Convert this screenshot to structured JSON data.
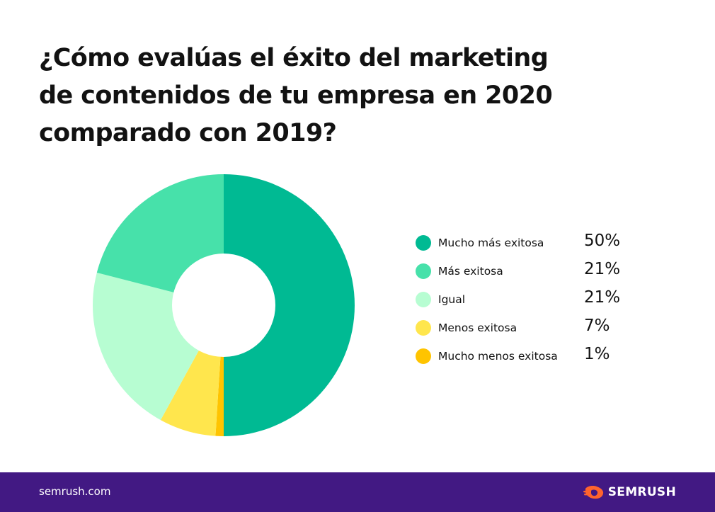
{
  "title_lines": [
    "¿Cómo evalúas el éxito del marketing",
    "de contenidos de tu empresa en 2020",
    "comparado con 2019?"
  ],
  "chart_data": {
    "type": "pie",
    "title": "¿Cómo evalúas el éxito del marketing de contenidos de tu empresa en 2020 comparado con 2019?",
    "categories": [
      "Mucho más exitosa",
      "Más exitosa",
      "Igual",
      "Menos exitosa",
      "Mucho menos exitosa"
    ],
    "values": [
      50,
      21,
      21,
      7,
      1
    ],
    "value_labels": [
      "50%",
      "21%",
      "21%",
      "7%",
      "1%"
    ],
    "colors": [
      "#00ba93",
      "#47e1aa",
      "#b7fdd2",
      "#ffe64d",
      "#ffc400"
    ],
    "start_angle_deg": 0,
    "direction": "clockwise",
    "slice_order": [
      "Mucho más exitosa",
      "Mucho menos exitosa",
      "Menos exitosa",
      "Igual",
      "Más exitosa"
    ],
    "legend_position": "right",
    "donut": true
  },
  "footer": {
    "url": "semrush.com",
    "brand": "SEMRUSH",
    "logo_icon": "semrush-flame-icon",
    "background": "#421983"
  }
}
